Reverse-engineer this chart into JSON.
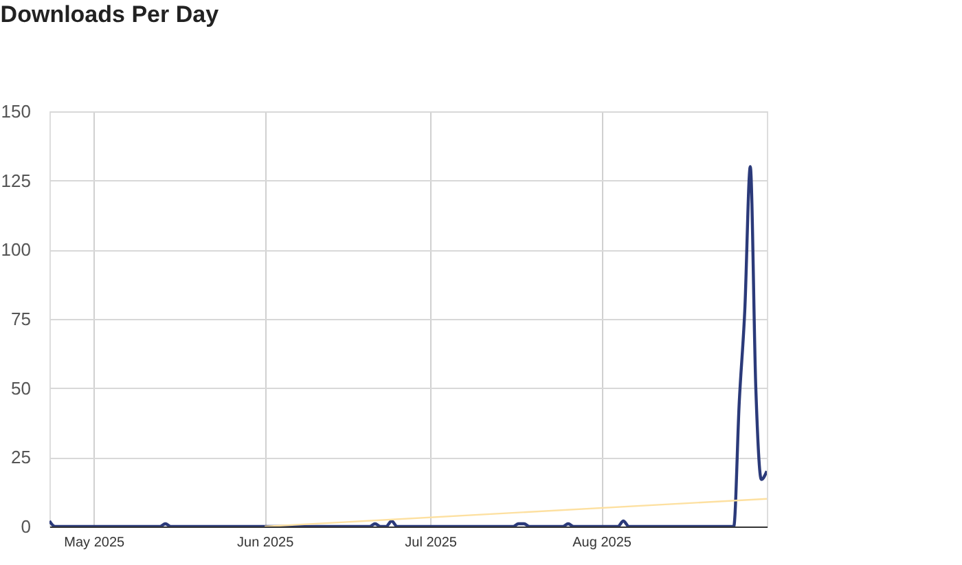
{
  "chart_data": {
    "type": "line",
    "title": "Downloads Per Day",
    "x": [
      "2025-04-23",
      "2025-04-24",
      "2025-05-13",
      "2025-05-14",
      "2025-05-15",
      "2025-06-20",
      "2025-06-21",
      "2025-06-22",
      "2025-06-23",
      "2025-06-24",
      "2025-06-25",
      "2025-07-16",
      "2025-07-17",
      "2025-07-18",
      "2025-07-19",
      "2025-07-25",
      "2025-07-26",
      "2025-07-27",
      "2025-08-04",
      "2025-08-05",
      "2025-08-06",
      "2025-08-25",
      "2025-08-26",
      "2025-08-27",
      "2025-08-28",
      "2025-08-29",
      "2025-08-30",
      "2025-08-31"
    ],
    "series": [
      {
        "color": "#2b3a7a",
        "values": [
          2,
          0,
          0,
          1,
          0,
          0,
          1,
          0,
          0,
          2,
          0,
          0,
          1,
          1,
          0,
          0,
          1,
          0,
          0,
          2,
          0,
          0,
          45,
          78,
          130,
          50,
          17,
          20
        ]
      },
      {
        "type": "line",
        "color": "#fde0a0",
        "x": [
          "2025-06-01",
          "2025-08-31"
        ],
        "values": [
          0,
          10
        ]
      }
    ],
    "xlim": [
      "2025-04-23",
      "2025-08-31"
    ],
    "xticks": [
      {
        "value": "2025-05-01",
        "label": "May 2025"
      },
      {
        "value": "2025-06-01",
        "label": "Jun 2025"
      },
      {
        "value": "2025-07-01",
        "label": "Jul 2025"
      },
      {
        "value": "2025-08-01",
        "label": "Aug 2025"
      }
    ],
    "ylim": [
      0,
      150
    ],
    "yticks": [
      0,
      25,
      50,
      75,
      100,
      125,
      150
    ],
    "grid": true
  }
}
